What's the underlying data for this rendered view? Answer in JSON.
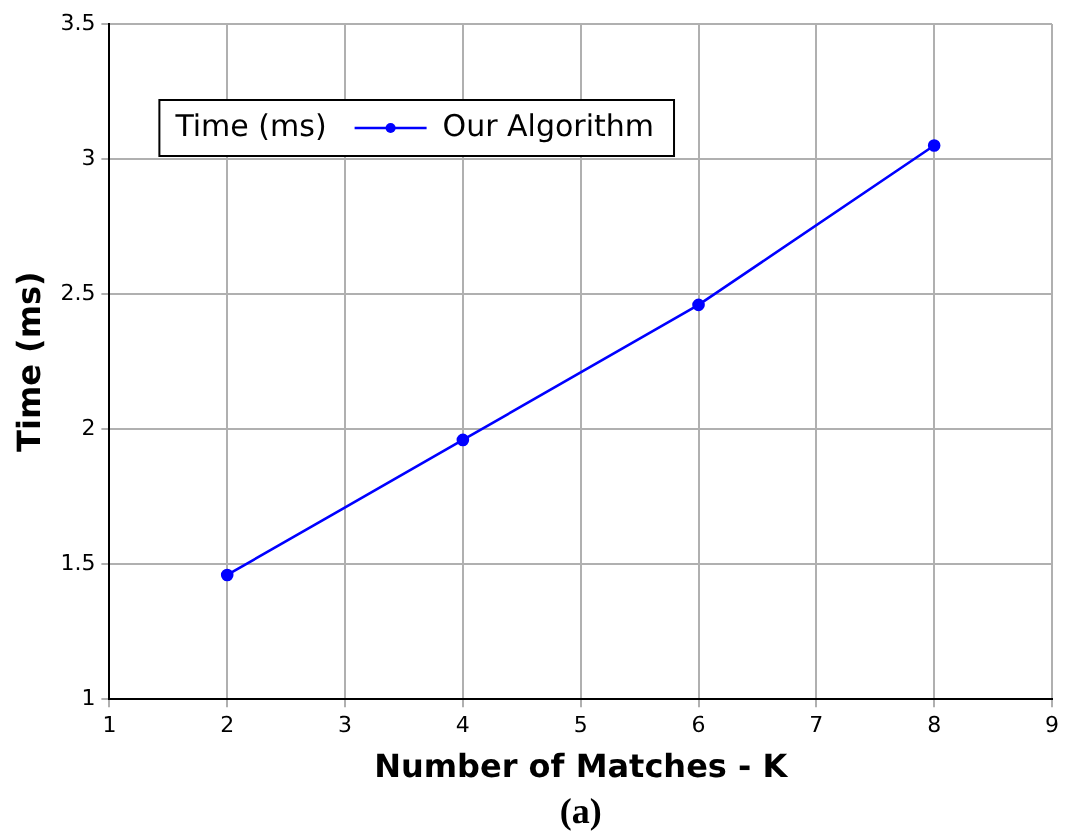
{
  "chart_data": {
    "type": "line",
    "xlabel": "Number of Matches - K",
    "ylabel": "Time (ms)",
    "legend_title": "Time (ms)",
    "x": [
      2,
      4,
      6,
      8
    ],
    "series": [
      {
        "name": "Our Algorithm",
        "color": "#0000ff",
        "values": [
          1.46,
          1.96,
          2.46,
          3.05
        ]
      }
    ],
    "xlim": [
      1,
      9
    ],
    "xticks": [
      1,
      2,
      3,
      4,
      5,
      6,
      7,
      8,
      9
    ],
    "ylim": [
      1,
      3.5
    ],
    "yticks": [
      1,
      1.5,
      2,
      2.5,
      3,
      3.5
    ],
    "grid": true,
    "legend": "top left",
    "marker": "circle",
    "line_style": "solid",
    "annotations": [
      "(a)"
    ]
  }
}
